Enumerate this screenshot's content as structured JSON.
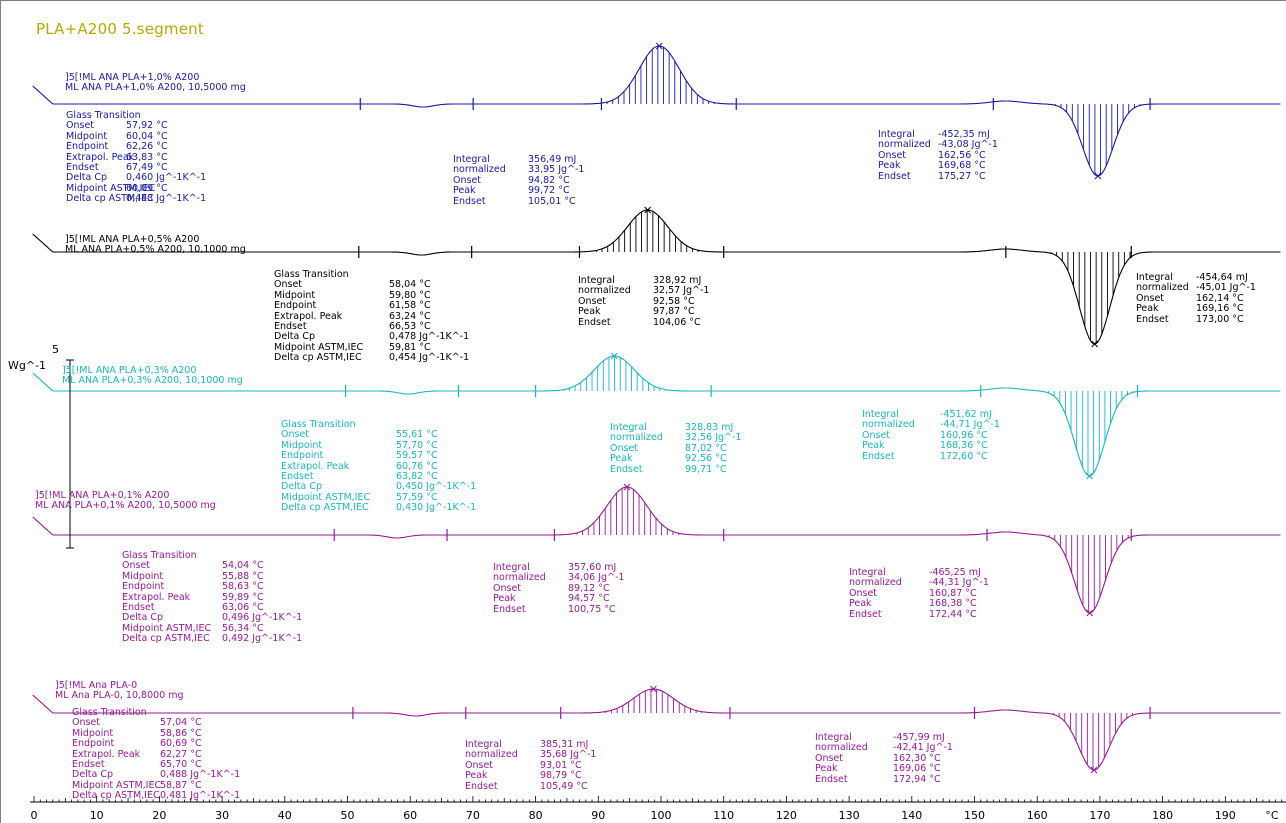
{
  "title": "PLA+A200 5.segment",
  "colors": {
    "blue": "#1a1aa6",
    "black": "#000000",
    "cyan": "#1ab8c0",
    "magenta": "#9a1a9a",
    "magenta2": "#9a1a9a",
    "title": "#b8a800"
  },
  "scale_bar": {
    "value": "5",
    "unit": "Wg^-1"
  },
  "chart_data": {
    "type": "line",
    "title": "PLA+A200 5.segment",
    "xlabel": "°C",
    "xlim": [
      0,
      195
    ],
    "x_ticks": [
      "0",
      "10",
      "20",
      "30",
      "40",
      "50",
      "60",
      "70",
      "80",
      "90",
      "100",
      "110",
      "120",
      "130",
      "140",
      "150",
      "160",
      "170",
      "180",
      "190",
      "°C"
    ],
    "series": [
      {
        "name": "]5[!ML ANA PLA+1,0% A200",
        "name2": "ML ANA PLA+1,0% A200, 10,5000 mg",
        "color": "#1a1aa6",
        "glass": {
          "header": "Glass Transition",
          "rows": [
            [
              "Onset",
              "57,92 °C"
            ],
            [
              "Midpoint",
              "60,04 °C"
            ],
            [
              "Endpoint",
              "62,26 °C"
            ],
            [
              "Extrapol. Peak",
              "63,83 °C"
            ],
            [
              "Endset",
              "67,49 °C"
            ],
            [
              "Delta Cp",
              "0,460 Jg^-1K^-1"
            ],
            [
              "Midpoint ASTM,IEC",
              "60,09 °C"
            ],
            [
              "Delta cp ASTM,IEC",
              "0,443 Jg^-1K^-1"
            ]
          ]
        },
        "exo": {
          "rows": [
            [
              "Integral",
              "356,49 mJ"
            ],
            [
              "  normalized",
              "33,95 Jg^-1"
            ],
            [
              "Onset",
              "94,82 °C"
            ],
            [
              "Peak",
              "99,72 °C"
            ],
            [
              "Endset",
              "105,01 °C"
            ]
          ]
        },
        "endo": {
          "rows": [
            [
              "Integral",
              "-452,35 mJ"
            ],
            [
              "  normalized",
              "-43,08 Jg^-1"
            ],
            [
              "Onset",
              "162,56 °C"
            ],
            [
              "Peak",
              "169,68 °C"
            ],
            [
              "Endset",
              "175,27 °C"
            ]
          ]
        },
        "tg": 60.04,
        "cc_peak": 99.72,
        "m_peak": 169.68
      },
      {
        "name": "]5[!ML ANA PLA+0,5% A200",
        "name2": "ML ANA PLA+0,5% A200, 10,1000 mg",
        "color": "#000000",
        "glass": {
          "header": "Glass Transition",
          "rows": [
            [
              "Onset",
              "58,04 °C"
            ],
            [
              "Midpoint",
              "59,80 °C"
            ],
            [
              "Endpoint",
              "61,58 °C"
            ],
            [
              "Extrapol. Peak",
              "63,24 °C"
            ],
            [
              "Endset",
              "66,53 °C"
            ],
            [
              "Delta Cp",
              "0,478 Jg^-1K^-1"
            ],
            [
              "Midpoint ASTM,IEC",
              "59,81 °C"
            ],
            [
              "Delta cp ASTM,IEC",
              "0,454 Jg^-1K^-1"
            ]
          ]
        },
        "exo": {
          "rows": [
            [
              "Integral",
              "328,92 mJ"
            ],
            [
              "  normalized",
              "32,57 Jg^-1"
            ],
            [
              "Onset",
              "92,58 °C"
            ],
            [
              "Peak",
              "97,87 °C"
            ],
            [
              "Endset",
              "104,06 °C"
            ]
          ]
        },
        "endo": {
          "rows": [
            [
              "Integral",
              "-454,64 mJ"
            ],
            [
              "  normalized",
              "-45,01 Jg^-1"
            ],
            [
              "Onset",
              "162,14 °C"
            ],
            [
              "Peak",
              "169,16 °C"
            ],
            [
              "Endset",
              "173,00 °C"
            ]
          ]
        },
        "tg": 59.8,
        "cc_peak": 97.87,
        "m_peak": 169.16
      },
      {
        "name": "]5[!ML ANA PLA+0,3% A200",
        "name2": "ML ANA PLA+0,3% A200, 10,1000 mg",
        "color": "#1ab8c0",
        "glass": {
          "header": "Glass Transition",
          "rows": [
            [
              "Onset",
              "55,61 °C"
            ],
            [
              "Midpoint",
              "57,70 °C"
            ],
            [
              "Endpoint",
              "59,57 °C"
            ],
            [
              "Extrapol. Peak",
              "60,76 °C"
            ],
            [
              "Endset",
              "63,82 °C"
            ],
            [
              "Delta Cp",
              "0,450 Jg^-1K^-1"
            ],
            [
              "Midpoint ASTM,IEC",
              "57,59 °C"
            ],
            [
              "Delta cp ASTM,IEC",
              "0,430 Jg^-1K^-1"
            ]
          ]
        },
        "exo": {
          "rows": [
            [
              "Integral",
              "328,83 mJ"
            ],
            [
              "  normalized",
              "32,56 Jg^-1"
            ],
            [
              "Onset",
              "87,02 °C"
            ],
            [
              "Peak",
              "92,56 °C"
            ],
            [
              "Endset",
              "99,71 °C"
            ]
          ]
        },
        "endo": {
          "rows": [
            [
              "Integral",
              "-451,62 mJ"
            ],
            [
              "  normalized",
              "-44,71 Jg^-1"
            ],
            [
              "Onset",
              "160,96 °C"
            ],
            [
              "Peak",
              "168,36 °C"
            ],
            [
              "Endset",
              "172,60 °C"
            ]
          ]
        },
        "tg": 57.7,
        "cc_peak": 92.56,
        "m_peak": 168.36
      },
      {
        "name": "]5[!ML ANA PLA+0,1% A200",
        "name2": "ML ANA PLA+0,1% A200, 10,5000 mg",
        "color": "#9a1a9a",
        "glass": {
          "header": "Glass Transition",
          "rows": [
            [
              "Onset",
              "54,04 °C"
            ],
            [
              "Midpoint",
              "55,88 °C"
            ],
            [
              "Endpoint",
              "58,63 °C"
            ],
            [
              "Extrapol. Peak",
              "59,89 °C"
            ],
            [
              "Endset",
              "63,06 °C"
            ],
            [
              "Delta Cp",
              "0,496 Jg^-1K^-1"
            ],
            [
              "Midpoint ASTM,IEC",
              "56,34 °C"
            ],
            [
              "Delta cp ASTM,IEC",
              "0,492 Jg^-1K^-1"
            ]
          ]
        },
        "exo": {
          "rows": [
            [
              "Integral",
              "357,60 mJ"
            ],
            [
              "  normalized",
              "34,06 Jg^-1"
            ],
            [
              "Onset",
              "89,12 °C"
            ],
            [
              "Peak",
              "94,57 °C"
            ],
            [
              "Endset",
              "100,75 °C"
            ]
          ]
        },
        "endo": {
          "rows": [
            [
              "Integral",
              "-465,25 mJ"
            ],
            [
              "  normalized",
              "-44,31 Jg^-1"
            ],
            [
              "Onset",
              "160,87 °C"
            ],
            [
              "Peak",
              "168,38 °C"
            ],
            [
              "Endset",
              "172,44 °C"
            ]
          ]
        },
        "tg": 55.88,
        "cc_peak": 94.57,
        "m_peak": 168.38
      },
      {
        "name": "]5[!ML Ana PLA-0",
        "name2": "ML Ana PLA-0, 10,8000 mg",
        "color": "#9a1a9a",
        "glass": {
          "header": "Glass Transition",
          "rows": [
            [
              "Onset",
              "57,04 °C"
            ],
            [
              "Midpoint",
              "58,86 °C"
            ],
            [
              "Endpoint",
              "60,69 °C"
            ],
            [
              "Extrapol. Peak",
              "62,27 °C"
            ],
            [
              "Endset",
              "65,70 °C"
            ],
            [
              "Delta Cp",
              "0,488 Jg^-1K^-1"
            ],
            [
              "Midpoint ASTM,IEC",
              "58,87 °C"
            ],
            [
              "Delta cp ASTM,IEC",
              "0,481 Jg^-1K^-1"
            ]
          ]
        },
        "exo": {
          "rows": [
            [
              "Integral",
              "385,31 mJ"
            ],
            [
              "  normalized",
              "35,68 Jg^-1"
            ],
            [
              "Onset",
              "93,01 °C"
            ],
            [
              "Peak",
              "98,79 °C"
            ],
            [
              "Endset",
              "105,49 °C"
            ]
          ]
        },
        "endo": {
          "rows": [
            [
              "Integral",
              "-457,99 mJ"
            ],
            [
              "  normalized",
              "-42,41 Jg^-1"
            ],
            [
              "Onset",
              "162,30 °C"
            ],
            [
              "Peak",
              "169,06 °C"
            ],
            [
              "Endset",
              "172,94 °C"
            ]
          ]
        },
        "tg": 58.86,
        "cc_peak": 98.79,
        "m_peak": 169.06
      }
    ]
  }
}
